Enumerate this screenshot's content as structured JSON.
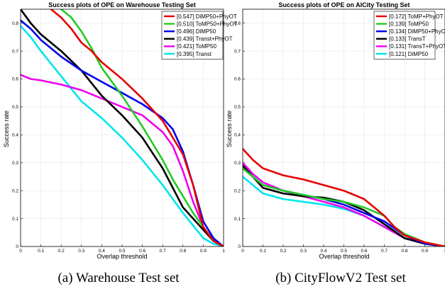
{
  "chart_data": [
    {
      "type": "line",
      "title": "Success plots of OPE on Warehouse Testing Set",
      "xlabel": "Overlap threshold",
      "ylabel": "Success rate",
      "caption": "(a) Warehouse Test set",
      "xlim": [
        0,
        1
      ],
      "ylim": [
        0,
        0.85
      ],
      "xticks": [
        "0",
        "0.1",
        "0.2",
        "0.3",
        "0.4",
        "0.5",
        "0.6",
        "0.7",
        "0.8",
        "0.9",
        "1"
      ],
      "yticks": [
        "0",
        "0.1",
        "0.2",
        "0.3",
        "0.4",
        "0.5",
        "0.6",
        "0.7",
        "0.8"
      ],
      "grid": true,
      "legend_position": "top-right",
      "series": [
        {
          "name": "[0.547] DiMP50+PhyOT",
          "color": "#e60000",
          "x": [
            0.15,
            0.2,
            0.25,
            0.3,
            0.35,
            0.4,
            0.5,
            0.6,
            0.7,
            0.8,
            0.85,
            0.9,
            0.95,
            1.0
          ],
          "y": [
            0.85,
            0.82,
            0.78,
            0.73,
            0.7,
            0.66,
            0.6,
            0.53,
            0.45,
            0.33,
            0.22,
            0.07,
            0.02,
            0.0
          ]
        },
        {
          "name": "[0.510] ToMP50+PhyOT",
          "color": "#22cc22",
          "x": [
            0.2,
            0.25,
            0.3,
            0.35,
            0.4,
            0.5,
            0.6,
            0.7,
            0.75,
            0.8,
            0.85,
            0.9,
            0.95,
            1.0
          ],
          "y": [
            0.85,
            0.82,
            0.77,
            0.71,
            0.64,
            0.54,
            0.43,
            0.31,
            0.24,
            0.18,
            0.12,
            0.07,
            0.02,
            0.0
          ]
        },
        {
          "name": "[0.496] DiMP50",
          "color": "#0000ee",
          "x": [
            0.0,
            0.05,
            0.1,
            0.2,
            0.3,
            0.4,
            0.5,
            0.6,
            0.7,
            0.75,
            0.8,
            0.85,
            0.9,
            0.95,
            1.0
          ],
          "y": [
            0.81,
            0.78,
            0.74,
            0.68,
            0.63,
            0.59,
            0.55,
            0.51,
            0.46,
            0.42,
            0.34,
            0.22,
            0.09,
            0.03,
            0.0
          ]
        },
        {
          "name": "[0.439] Transt+PhyOT",
          "color": "#000000",
          "x": [
            0.0,
            0.05,
            0.1,
            0.2,
            0.3,
            0.4,
            0.5,
            0.6,
            0.7,
            0.8,
            0.9,
            0.95,
            1.0
          ],
          "y": [
            0.85,
            0.8,
            0.76,
            0.7,
            0.63,
            0.54,
            0.47,
            0.39,
            0.28,
            0.14,
            0.06,
            0.02,
            0.0
          ]
        },
        {
          "name": "[0.421] ToMP50",
          "color": "#ee00ee",
          "x": [
            0.0,
            0.05,
            0.1,
            0.2,
            0.3,
            0.4,
            0.5,
            0.6,
            0.65,
            0.7,
            0.75,
            0.8,
            0.85,
            0.9,
            0.95,
            1.0
          ],
          "y": [
            0.615,
            0.6,
            0.595,
            0.58,
            0.56,
            0.53,
            0.5,
            0.47,
            0.44,
            0.41,
            0.36,
            0.27,
            0.16,
            0.07,
            0.02,
            0.0
          ]
        },
        {
          "name": "[0.395] Transt",
          "color": "#00e5ee",
          "x": [
            0.0,
            0.05,
            0.1,
            0.2,
            0.3,
            0.4,
            0.5,
            0.6,
            0.7,
            0.8,
            0.9,
            0.95,
            1.0
          ],
          "y": [
            0.79,
            0.75,
            0.7,
            0.61,
            0.52,
            0.46,
            0.39,
            0.31,
            0.22,
            0.12,
            0.03,
            0.01,
            0.0
          ]
        }
      ]
    },
    {
      "type": "line",
      "title": "Success plots of OPE on AICity Testing Set",
      "xlabel": "Overlap threshold",
      "ylabel": "Success rate",
      "caption": "(b) CityFlowV2 Test set",
      "xlim": [
        0,
        1
      ],
      "ylim": [
        0,
        0.85
      ],
      "xticks": [
        "0",
        "0.1",
        "0.2",
        "0.3",
        "0.4",
        "0.5",
        "0.6",
        "0.7",
        "0.8",
        "0.9",
        "1"
      ],
      "yticks": [
        "0",
        "0.1",
        "0.2",
        "0.3",
        "0.4",
        "0.5",
        "0.6",
        "0.7",
        "0.8"
      ],
      "grid": true,
      "legend_position": "top-right",
      "series": [
        {
          "name": "[0.172] ToMP+PhyOT",
          "color": "#e60000",
          "x": [
            0.0,
            0.05,
            0.1,
            0.2,
            0.3,
            0.4,
            0.5,
            0.6,
            0.65,
            0.7,
            0.75,
            0.8,
            0.9,
            1.0
          ],
          "y": [
            0.35,
            0.31,
            0.28,
            0.255,
            0.24,
            0.22,
            0.2,
            0.17,
            0.14,
            0.11,
            0.07,
            0.04,
            0.015,
            0.0
          ]
        },
        {
          "name": "[0.139] ToMP50",
          "color": "#22cc22",
          "x": [
            0.0,
            0.05,
            0.1,
            0.2,
            0.3,
            0.4,
            0.5,
            0.6,
            0.7,
            0.75,
            0.8,
            0.9,
            1.0
          ],
          "y": [
            0.28,
            0.25,
            0.22,
            0.2,
            0.185,
            0.17,
            0.16,
            0.14,
            0.11,
            0.07,
            0.045,
            0.015,
            0.0
          ]
        },
        {
          "name": "[0.134] DiMP50+PhyOT",
          "color": "#0000ee",
          "x": [
            0.0,
            0.05,
            0.1,
            0.2,
            0.3,
            0.4,
            0.5,
            0.6,
            0.7,
            0.8,
            0.9,
            1.0
          ],
          "y": [
            0.28,
            0.25,
            0.22,
            0.2,
            0.185,
            0.17,
            0.15,
            0.12,
            0.09,
            0.04,
            0.01,
            0.0
          ]
        },
        {
          "name": "[0.133] TransT",
          "color": "#000000",
          "x": [
            0.0,
            0.05,
            0.1,
            0.2,
            0.3,
            0.4,
            0.5,
            0.6,
            0.7,
            0.8,
            0.9,
            1.0
          ],
          "y": [
            0.29,
            0.25,
            0.21,
            0.19,
            0.18,
            0.175,
            0.16,
            0.13,
            0.08,
            0.03,
            0.01,
            0.0
          ]
        },
        {
          "name": "[0.131] TransT+PhyOT",
          "color": "#ee00ee",
          "x": [
            0.0,
            0.05,
            0.1,
            0.2,
            0.3,
            0.4,
            0.5,
            0.6,
            0.7,
            0.8,
            0.9,
            1.0
          ],
          "y": [
            0.3,
            0.26,
            0.23,
            0.2,
            0.18,
            0.16,
            0.14,
            0.11,
            0.07,
            0.03,
            0.01,
            0.0
          ]
        },
        {
          "name": "[0.121] DiMP50",
          "color": "#00e5ee",
          "x": [
            0.0,
            0.05,
            0.1,
            0.2,
            0.3,
            0.4,
            0.5,
            0.6,
            0.7,
            0.8,
            0.9,
            1.0
          ],
          "y": [
            0.25,
            0.22,
            0.19,
            0.17,
            0.16,
            0.15,
            0.135,
            0.11,
            0.07,
            0.03,
            0.01,
            0.0
          ]
        }
      ]
    }
  ]
}
